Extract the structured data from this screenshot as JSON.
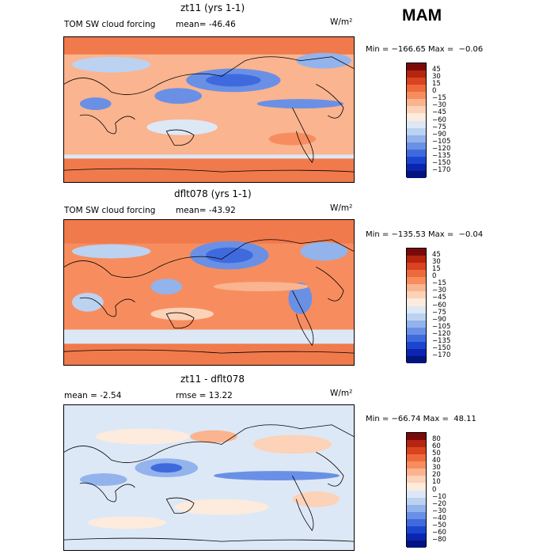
{
  "season": "MAM",
  "panels": [
    {
      "title": "zt11 (yrs 1-1)",
      "left_label": "TOM SW cloud forcing",
      "mean_label": "mean=  -46.46",
      "units": "W/m²",
      "minmax": "Min = −166.65 Max =  −0.06",
      "colorbar_labels": [
        "45",
        "30",
        "15",
        "0",
        "−15",
        "−30",
        "−45",
        "−60",
        "−75",
        "−90",
        "−105",
        "−120",
        "−135",
        "−150",
        "−170"
      ],
      "colorbar_colors": [
        "#7a0a0a",
        "#b52510",
        "#d9431f",
        "#ee6a3c",
        "#f78d5f",
        "#fab48f",
        "#fcd2b8",
        "#fdebdd",
        "#dde8f6",
        "#bcd2f1",
        "#93b3ec",
        "#6a90e6",
        "#3f6ade",
        "#1c45cf",
        "#0a26b0",
        "#031480"
      ]
    },
    {
      "title": "dflt078 (yrs 1-1)",
      "left_label": "TOM SW cloud forcing",
      "mean_label": "mean=  -43.92",
      "units": "W/m²",
      "minmax": "Min = −135.53 Max =  −0.04",
      "colorbar_labels": [
        "45",
        "30",
        "15",
        "0",
        "−15",
        "−30",
        "−45",
        "−60",
        "−75",
        "−90",
        "−105",
        "−120",
        "−135",
        "−150",
        "−170"
      ],
      "colorbar_colors": [
        "#7a0a0a",
        "#b52510",
        "#d9431f",
        "#ee6a3c",
        "#f78d5f",
        "#fab48f",
        "#fcd2b8",
        "#fdebdd",
        "#dde8f6",
        "#bcd2f1",
        "#93b3ec",
        "#6a90e6",
        "#3f6ade",
        "#1c45cf",
        "#0a26b0",
        "#031480"
      ]
    },
    {
      "title": "zt11 - dflt078",
      "mean_label": "mean =   -2.54",
      "rmse_label": "rmse =   13.22",
      "units": "W/m²",
      "minmax": "Min = −66.74 Max =  48.11",
      "colorbar_labels": [
        "80",
        "60",
        "50",
        "40",
        "30",
        "20",
        "10",
        "0",
        "−10",
        "−20",
        "−30",
        "−40",
        "−50",
        "−60",
        "−80"
      ],
      "colorbar_colors": [
        "#7a0a0a",
        "#b52510",
        "#d9431f",
        "#ee6a3c",
        "#f78d5f",
        "#fab48f",
        "#fcd2b8",
        "#fdebdd",
        "#dde8f6",
        "#bcd2f1",
        "#93b3ec",
        "#6a90e6",
        "#3f6ade",
        "#1c45cf",
        "#0a26b0",
        "#031480"
      ]
    }
  ]
}
